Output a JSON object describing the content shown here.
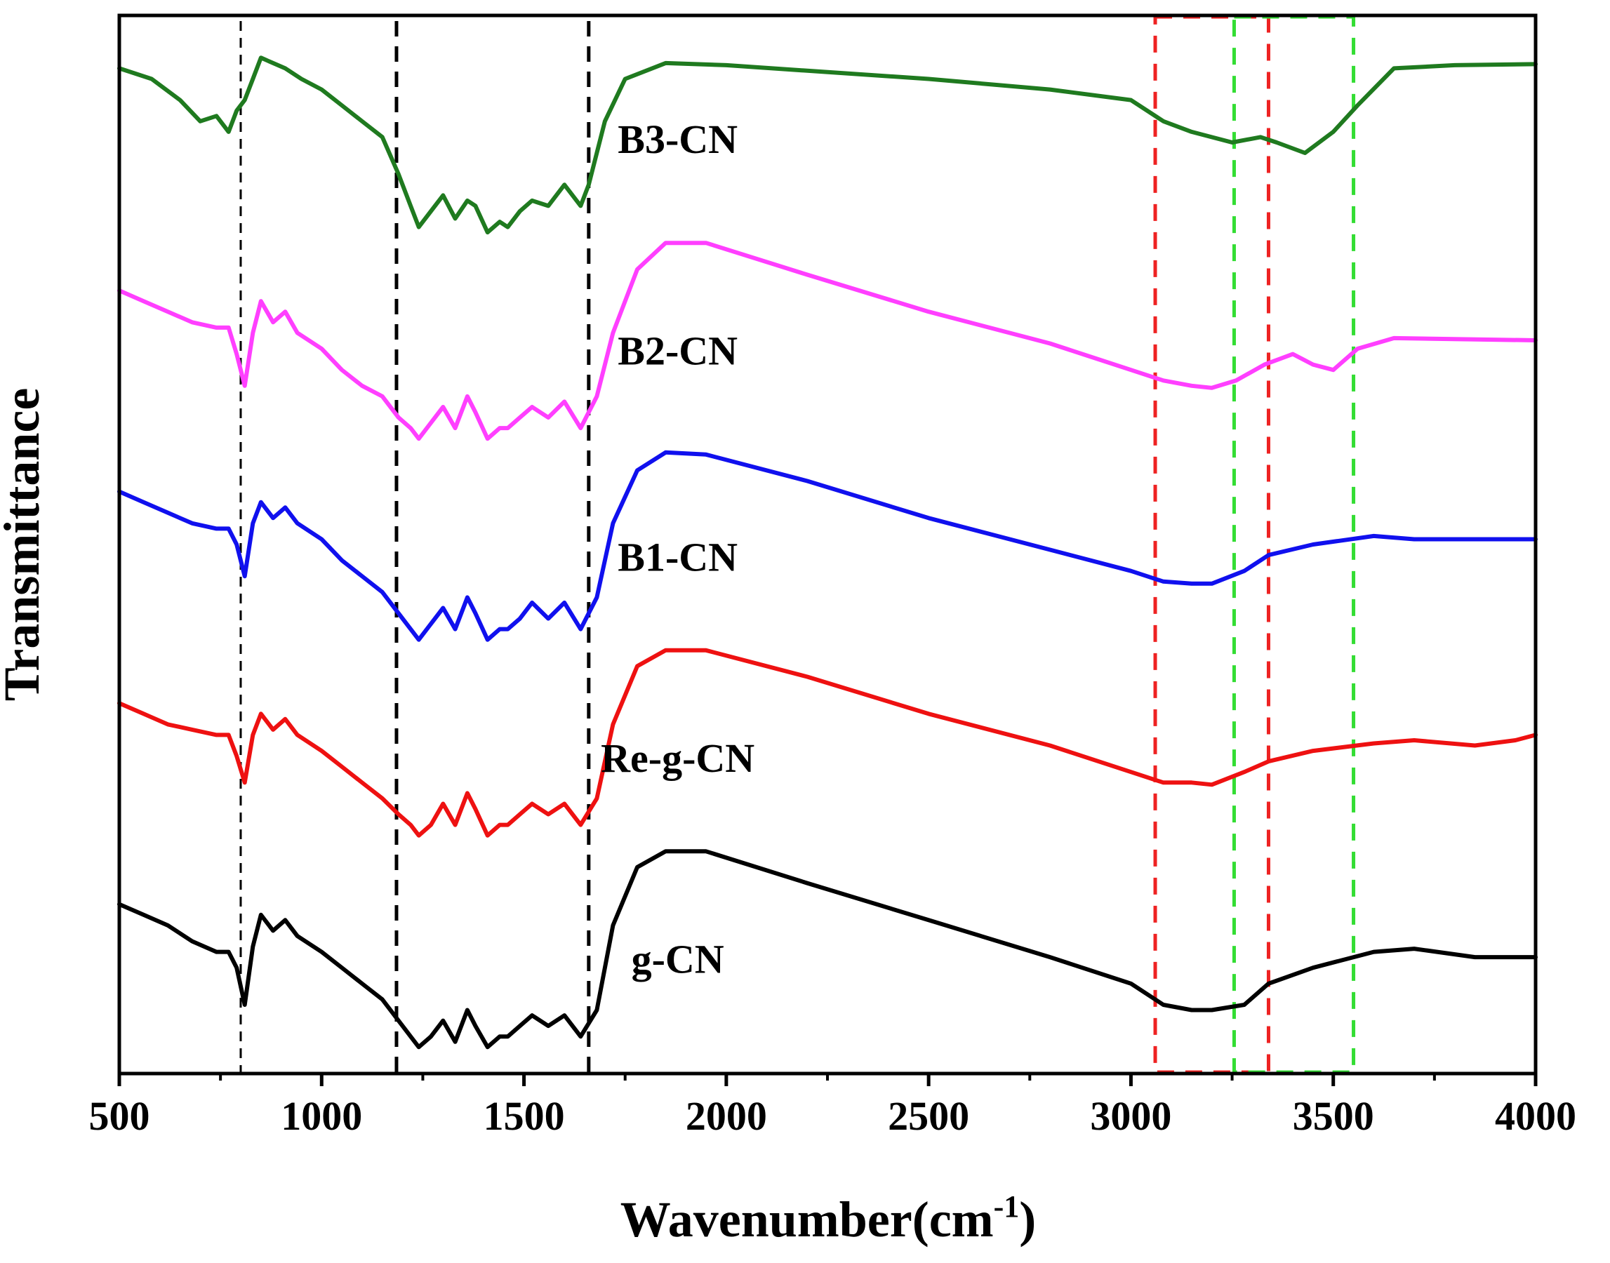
{
  "chart_data": {
    "type": "line",
    "title": "",
    "xlabel": "Wavenumber(cm",
    "xlabel_superscript": "-1",
    "xlabel_suffix": ")",
    "ylabel": "Transmittance",
    "xlim": [
      500,
      4000
    ],
    "ylim": [
      0,
      100
    ],
    "x_ticks": [
      500,
      1000,
      1500,
      2000,
      2500,
      3000,
      3500,
      4000
    ],
    "y_ticks_shown": false,
    "grid": false,
    "legend": "inline labels near each curve",
    "series": [
      {
        "name": "B3-CN",
        "color": "#1f7a1f",
        "label_anchor": [
          1880,
          87
        ],
        "points": [
          [
            500,
            95
          ],
          [
            580,
            94
          ],
          [
            650,
            92
          ],
          [
            700,
            90
          ],
          [
            740,
            90.5
          ],
          [
            770,
            89
          ],
          [
            790,
            91
          ],
          [
            810,
            92
          ],
          [
            830,
            94
          ],
          [
            850,
            96
          ],
          [
            880,
            95.5
          ],
          [
            910,
            95
          ],
          [
            950,
            94
          ],
          [
            1000,
            93
          ],
          [
            1050,
            91.5
          ],
          [
            1100,
            90
          ],
          [
            1150,
            88.5
          ],
          [
            1190,
            85
          ],
          [
            1220,
            82
          ],
          [
            1240,
            80
          ],
          [
            1270,
            81.5
          ],
          [
            1300,
            83
          ],
          [
            1330,
            80.8
          ],
          [
            1360,
            82.5
          ],
          [
            1380,
            82
          ],
          [
            1410,
            79.5
          ],
          [
            1440,
            80.5
          ],
          [
            1460,
            80
          ],
          [
            1490,
            81.5
          ],
          [
            1520,
            82.5
          ],
          [
            1560,
            82
          ],
          [
            1600,
            84
          ],
          [
            1640,
            82
          ],
          [
            1660,
            84
          ],
          [
            1700,
            90
          ],
          [
            1750,
            94
          ],
          [
            1850,
            95.5
          ],
          [
            2000,
            95.3
          ],
          [
            2500,
            94
          ],
          [
            2800,
            93
          ],
          [
            3000,
            92
          ],
          [
            3080,
            90
          ],
          [
            3150,
            89
          ],
          [
            3250,
            88
          ],
          [
            3320,
            88.5
          ],
          [
            3360,
            88
          ],
          [
            3430,
            87
          ],
          [
            3500,
            89
          ],
          [
            3560,
            91.5
          ],
          [
            3650,
            95
          ],
          [
            3800,
            95.3
          ],
          [
            4000,
            95.4
          ]
        ]
      },
      {
        "name": "B2-CN",
        "color": "#ff3fff",
        "label_anchor": [
          1880,
          67
        ],
        "points": [
          [
            500,
            74
          ],
          [
            560,
            73
          ],
          [
            620,
            72
          ],
          [
            680,
            71
          ],
          [
            740,
            70.5
          ],
          [
            770,
            70.5
          ],
          [
            790,
            68
          ],
          [
            810,
            65
          ],
          [
            830,
            70
          ],
          [
            850,
            73
          ],
          [
            880,
            71
          ],
          [
            910,
            72
          ],
          [
            940,
            70
          ],
          [
            1000,
            68.5
          ],
          [
            1050,
            66.5
          ],
          [
            1100,
            65
          ],
          [
            1150,
            64
          ],
          [
            1190,
            62
          ],
          [
            1220,
            61
          ],
          [
            1240,
            60
          ],
          [
            1270,
            61.5
          ],
          [
            1300,
            63
          ],
          [
            1330,
            61
          ],
          [
            1360,
            64
          ],
          [
            1380,
            62.5
          ],
          [
            1410,
            60
          ],
          [
            1440,
            61
          ],
          [
            1460,
            61
          ],
          [
            1490,
            62
          ],
          [
            1520,
            63
          ],
          [
            1560,
            62
          ],
          [
            1600,
            63.5
          ],
          [
            1640,
            61
          ],
          [
            1680,
            64
          ],
          [
            1720,
            70
          ],
          [
            1780,
            76
          ],
          [
            1850,
            78.5
          ],
          [
            1950,
            78.5
          ],
          [
            2200,
            75.5
          ],
          [
            2500,
            72
          ],
          [
            2800,
            69
          ],
          [
            3000,
            66.5
          ],
          [
            3080,
            65.5
          ],
          [
            3150,
            65
          ],
          [
            3200,
            64.8
          ],
          [
            3260,
            65.5
          ],
          [
            3330,
            67
          ],
          [
            3400,
            68
          ],
          [
            3450,
            67
          ],
          [
            3500,
            66.5
          ],
          [
            3560,
            68.5
          ],
          [
            3650,
            69.5
          ],
          [
            4000,
            69.3
          ]
        ]
      },
      {
        "name": "B1-CN",
        "color": "#1010ee",
        "label_anchor": [
          1880,
          47.5
        ],
        "points": [
          [
            500,
            55
          ],
          [
            560,
            54
          ],
          [
            620,
            53
          ],
          [
            680,
            52
          ],
          [
            740,
            51.5
          ],
          [
            770,
            51.5
          ],
          [
            790,
            50
          ],
          [
            810,
            47
          ],
          [
            830,
            52
          ],
          [
            850,
            54
          ],
          [
            880,
            52.5
          ],
          [
            910,
            53.5
          ],
          [
            940,
            52
          ],
          [
            1000,
            50.5
          ],
          [
            1050,
            48.5
          ],
          [
            1100,
            47
          ],
          [
            1150,
            45.5
          ],
          [
            1190,
            43.5
          ],
          [
            1220,
            42
          ],
          [
            1240,
            41
          ],
          [
            1270,
            42.5
          ],
          [
            1300,
            44
          ],
          [
            1330,
            42
          ],
          [
            1360,
            45
          ],
          [
            1380,
            43.5
          ],
          [
            1410,
            41
          ],
          [
            1440,
            42
          ],
          [
            1460,
            42
          ],
          [
            1490,
            43
          ],
          [
            1520,
            44.5
          ],
          [
            1560,
            43
          ],
          [
            1600,
            44.5
          ],
          [
            1640,
            42
          ],
          [
            1680,
            45
          ],
          [
            1720,
            52
          ],
          [
            1780,
            57
          ],
          [
            1850,
            58.7
          ],
          [
            1950,
            58.5
          ],
          [
            2200,
            56
          ],
          [
            2500,
            52.5
          ],
          [
            2800,
            49.5
          ],
          [
            3000,
            47.5
          ],
          [
            3080,
            46.5
          ],
          [
            3150,
            46.3
          ],
          [
            3200,
            46.3
          ],
          [
            3280,
            47.5
          ],
          [
            3340,
            49
          ],
          [
            3450,
            50
          ],
          [
            3600,
            50.8
          ],
          [
            3700,
            50.5
          ],
          [
            4000,
            50.5
          ]
        ]
      },
      {
        "name": "Re-g-CN",
        "color": "#ee1111",
        "label_anchor": [
          1880,
          28.5
        ],
        "points": [
          [
            500,
            35
          ],
          [
            560,
            34
          ],
          [
            620,
            33
          ],
          [
            680,
            32.5
          ],
          [
            740,
            32
          ],
          [
            770,
            32
          ],
          [
            790,
            30
          ],
          [
            810,
            27.5
          ],
          [
            830,
            32
          ],
          [
            850,
            34
          ],
          [
            880,
            32.5
          ],
          [
            910,
            33.5
          ],
          [
            940,
            32
          ],
          [
            1000,
            30.5
          ],
          [
            1050,
            29
          ],
          [
            1100,
            27.5
          ],
          [
            1150,
            26
          ],
          [
            1190,
            24.5
          ],
          [
            1220,
            23.5
          ],
          [
            1240,
            22.5
          ],
          [
            1270,
            23.5
          ],
          [
            1300,
            25.5
          ],
          [
            1330,
            23.5
          ],
          [
            1360,
            26.5
          ],
          [
            1380,
            25
          ],
          [
            1410,
            22.5
          ],
          [
            1440,
            23.5
          ],
          [
            1460,
            23.5
          ],
          [
            1490,
            24.5
          ],
          [
            1520,
            25.5
          ],
          [
            1560,
            24.5
          ],
          [
            1600,
            25.5
          ],
          [
            1640,
            23.5
          ],
          [
            1680,
            26
          ],
          [
            1720,
            33
          ],
          [
            1780,
            38.5
          ],
          [
            1850,
            40
          ],
          [
            1950,
            40
          ],
          [
            2200,
            37.5
          ],
          [
            2500,
            34
          ],
          [
            2800,
            31
          ],
          [
            3000,
            28.5
          ],
          [
            3080,
            27.5
          ],
          [
            3150,
            27.5
          ],
          [
            3200,
            27.3
          ],
          [
            3280,
            28.5
          ],
          [
            3340,
            29.5
          ],
          [
            3450,
            30.5
          ],
          [
            3600,
            31.2
          ],
          [
            3700,
            31.5
          ],
          [
            3850,
            31
          ],
          [
            3950,
            31.5
          ],
          [
            4000,
            32
          ]
        ]
      },
      {
        "name": "g-CN",
        "color": "#000000",
        "label_anchor": [
          1880,
          9.5
        ],
        "points": [
          [
            500,
            16
          ],
          [
            560,
            15
          ],
          [
            620,
            14
          ],
          [
            680,
            12.5
          ],
          [
            740,
            11.5
          ],
          [
            770,
            11.5
          ],
          [
            790,
            10
          ],
          [
            810,
            6.5
          ],
          [
            830,
            12
          ],
          [
            850,
            15
          ],
          [
            880,
            13.5
          ],
          [
            910,
            14.5
          ],
          [
            940,
            13
          ],
          [
            1000,
            11.5
          ],
          [
            1050,
            10
          ],
          [
            1100,
            8.5
          ],
          [
            1150,
            7
          ],
          [
            1190,
            5
          ],
          [
            1220,
            3.5
          ],
          [
            1240,
            2.5
          ],
          [
            1270,
            3.5
          ],
          [
            1300,
            5
          ],
          [
            1330,
            3
          ],
          [
            1360,
            6
          ],
          [
            1380,
            4.5
          ],
          [
            1410,
            2.5
          ],
          [
            1440,
            3.5
          ],
          [
            1460,
            3.5
          ],
          [
            1490,
            4.5
          ],
          [
            1520,
            5.5
          ],
          [
            1560,
            4.5
          ],
          [
            1600,
            5.5
          ],
          [
            1640,
            3.5
          ],
          [
            1680,
            6
          ],
          [
            1720,
            14
          ],
          [
            1780,
            19.5
          ],
          [
            1850,
            21
          ],
          [
            1950,
            21
          ],
          [
            2200,
            18
          ],
          [
            2500,
            14.5
          ],
          [
            2800,
            11
          ],
          [
            3000,
            8.5
          ],
          [
            3080,
            6.5
          ],
          [
            3150,
            6
          ],
          [
            3200,
            6
          ],
          [
            3280,
            6.5
          ],
          [
            3340,
            8.5
          ],
          [
            3450,
            10
          ],
          [
            3600,
            11.5
          ],
          [
            3700,
            11.8
          ],
          [
            3850,
            11
          ],
          [
            4000,
            11
          ]
        ]
      }
    ],
    "annotations": {
      "vertical_dashed_lines_black": [
        800,
        1185,
        1660
      ],
      "red_dashed_box_x": [
        3060,
        3340
      ],
      "green_dashed_box_x": [
        3255,
        3550
      ]
    }
  }
}
